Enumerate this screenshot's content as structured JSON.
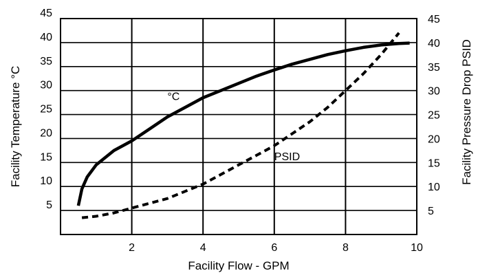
{
  "chart_data": {
    "type": "line",
    "xlabel": "Facility Flow - GPM",
    "ylabel_left": "Facility Temperature °C",
    "ylabel_right": "Facility Pressure Drop PSID",
    "xlim": [
      0,
      10
    ],
    "ylim_left": [
      0,
      45
    ],
    "ylim_right": [
      0,
      45
    ],
    "x_ticks": [
      "2",
      "4",
      "6",
      "8",
      "10"
    ],
    "x_tick_values": [
      2,
      4,
      6,
      8,
      10
    ],
    "y_ticks_left": [
      "5",
      "10",
      "15",
      "20",
      "25",
      "30",
      "35",
      "40",
      "45"
    ],
    "y_ticks_right": [
      "5",
      "10",
      "15",
      "20",
      "25",
      "30",
      "35",
      "40",
      "45"
    ],
    "y_tick_values": [
      5,
      10,
      15,
      20,
      25,
      30,
      35,
      40,
      45
    ],
    "grid": true,
    "series": [
      {
        "name": "°C",
        "axis": "left",
        "style": "solid",
        "color": "#000000",
        "label_at": [
          3.0,
          28.0
        ],
        "points": [
          [
            0.5,
            6.0
          ],
          [
            0.6,
            9.5
          ],
          [
            0.75,
            12.0
          ],
          [
            1.0,
            14.5
          ],
          [
            1.5,
            17.5
          ],
          [
            2.0,
            19.5
          ],
          [
            2.5,
            22.0
          ],
          [
            3.0,
            24.5
          ],
          [
            3.5,
            26.5
          ],
          [
            4.0,
            28.5
          ],
          [
            4.5,
            30.0
          ],
          [
            5.0,
            31.5
          ],
          [
            5.5,
            33.0
          ],
          [
            6.0,
            34.3
          ],
          [
            6.5,
            35.5
          ],
          [
            7.0,
            36.5
          ],
          [
            7.5,
            37.5
          ],
          [
            8.0,
            38.3
          ],
          [
            8.5,
            39.0
          ],
          [
            9.0,
            39.5
          ],
          [
            9.5,
            39.8
          ],
          [
            9.8,
            39.9
          ]
        ]
      },
      {
        "name": "PSID",
        "axis": "right",
        "style": "dashed",
        "color": "#000000",
        "label_at": [
          6.0,
          15.5
        ],
        "points": [
          [
            0.6,
            3.5
          ],
          [
            1.0,
            3.8
          ],
          [
            1.5,
            4.5
          ],
          [
            2.0,
            5.5
          ],
          [
            2.5,
            6.5
          ],
          [
            3.0,
            7.5
          ],
          [
            3.5,
            9.0
          ],
          [
            4.0,
            10.5
          ],
          [
            4.5,
            12.5
          ],
          [
            5.0,
            14.5
          ],
          [
            5.5,
            16.5
          ],
          [
            6.0,
            18.5
          ],
          [
            6.5,
            21.0
          ],
          [
            7.0,
            23.5
          ],
          [
            7.5,
            26.5
          ],
          [
            8.0,
            30.0
          ],
          [
            8.5,
            33.5
          ],
          [
            9.0,
            37.5
          ],
          [
            9.5,
            42.0
          ]
        ]
      }
    ]
  }
}
